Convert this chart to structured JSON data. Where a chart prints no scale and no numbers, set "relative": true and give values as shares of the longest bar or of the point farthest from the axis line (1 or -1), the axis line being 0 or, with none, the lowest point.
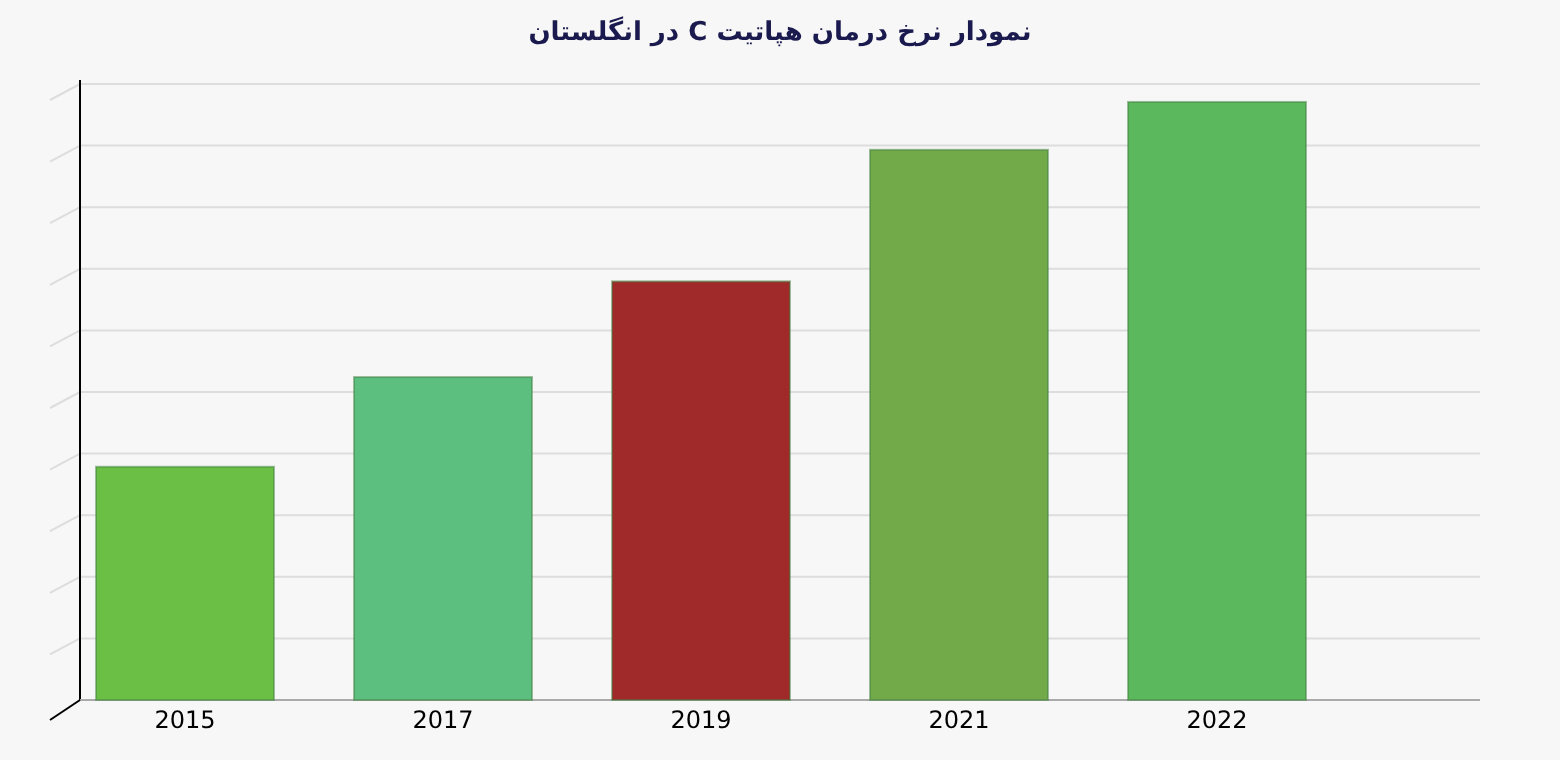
{
  "chart_data": {
    "type": "bar",
    "title": "نمودار نرخ درمان هپاتیت C در انگلستان",
    "categories": [
      "2015",
      "2017",
      "2019",
      "2021",
      "2022"
    ],
    "values": [
      0.39,
      0.54,
      0.7,
      0.92,
      1
    ],
    "colors": [
      "#6cbf45",
      "#5cbf80",
      "#a02a2a",
      "#72aa4a",
      "#5cb85c"
    ],
    "relative": true,
    "grid": "y"
  }
}
